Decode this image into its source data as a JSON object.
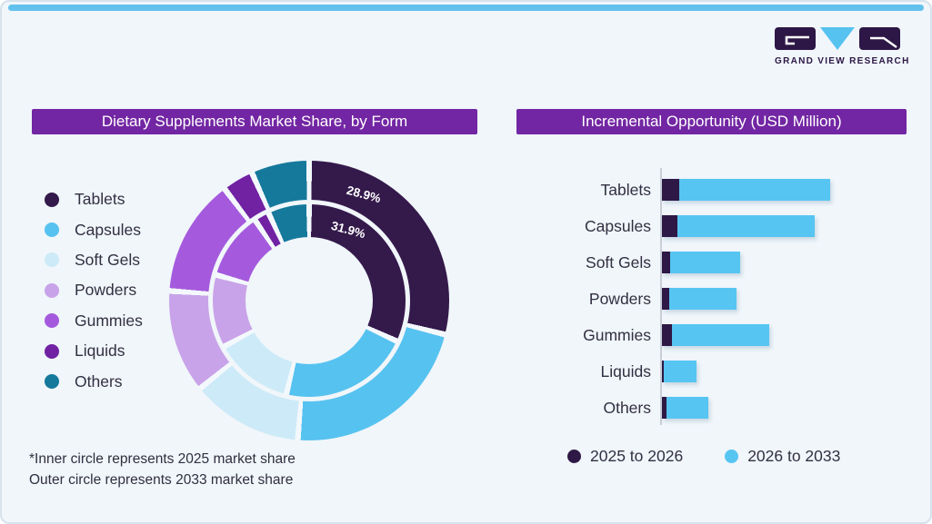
{
  "brand": {
    "logo_text": "GRAND VIEW RESEARCH"
  },
  "colors": {
    "card_background": "#f0f6fa",
    "top_strip": "#63c1ed",
    "title_bar": "#7226a3",
    "logo_dark": "#2d1746",
    "logo_blue": "#56c2f0",
    "text_dark": "#332f42",
    "axis_line": "#c9cfd8",
    "gap_color": "#f3f8fc"
  },
  "categories": [
    "Tablets",
    "Capsules",
    "Soft Gels",
    "Powders",
    "Gummies",
    "Liquids",
    "Others"
  ],
  "category_colors": [
    "#34194b",
    "#56c2f0",
    "#cdeaf8",
    "#c9a3e9",
    "#a55add",
    "#7122a3",
    "#15799c"
  ],
  "left_panel": {
    "title": "Dietary Supplements Market Share, by Form",
    "outer_label": "28.9%",
    "inner_label": "31.9%",
    "footnote_line1": "*Inner circle represents 2025 market share",
    "footnote_line2": "Outer circle represents 2033 market share"
  },
  "right_panel": {
    "title": "Incremental Opportunity (USD Million)",
    "legend": [
      {
        "label": "2025 to 2026",
        "color": "#2e1845"
      },
      {
        "label": "2026 to 2033",
        "color": "#56c5f2"
      }
    ]
  },
  "chart_data": [
    {
      "type": "pie",
      "subtype": "double_donut",
      "title": "Dietary Supplements Market Share, by Form",
      "categories": [
        "Tablets",
        "Capsules",
        "Soft Gels",
        "Powders",
        "Gummies",
        "Liquids",
        "Others"
      ],
      "colors": [
        "#34194b",
        "#56c2f0",
        "#cdeaf8",
        "#c9a3e9",
        "#a55add",
        "#7122a3",
        "#15799c"
      ],
      "series": [
        {
          "name": "2025 market share (inner circle)",
          "values": [
            31.9,
            21.9,
            13.3,
            12.2,
            11.3,
            2.5,
            6.9
          ]
        },
        {
          "name": "2033 market share (outer circle)",
          "values": [
            28.9,
            22.4,
            12.9,
            11.9,
            13.6,
            3.6,
            6.7
          ]
        }
      ],
      "labeled_values": {
        "inner_Tablets": "31.9%",
        "outer_Tablets": "28.9%"
      },
      "note": "Only the Tablets shares are labeled in the image; remaining values estimated from arc angles.",
      "legend_position": "left",
      "start_angle_deg": 0,
      "direction": "clockwise"
    },
    {
      "type": "bar",
      "orientation": "horizontal",
      "stacked": true,
      "title": "Incremental Opportunity (USD Million)",
      "categories": [
        "Tablets",
        "Capsules",
        "Soft Gels",
        "Powders",
        "Gummies",
        "Liquids",
        "Others"
      ],
      "series": [
        {
          "name": "2025 to 2026",
          "color": "#2e1845",
          "values": [
            10.4,
            9.0,
            4.7,
            4.5,
            5.9,
            1.2,
            2.5
          ]
        },
        {
          "name": "2026 to 2033",
          "color": "#56c5f2",
          "values": [
            89.6,
            81.8,
            41.8,
            39.8,
            57.9,
            19.3,
            25.1
          ]
        }
      ],
      "value_scale": "relative units estimated from bar lengths; longest total bar (Tablets) = 100; axis has no tick labels",
      "legend_position": "bottom",
      "grid": false
    }
  ]
}
